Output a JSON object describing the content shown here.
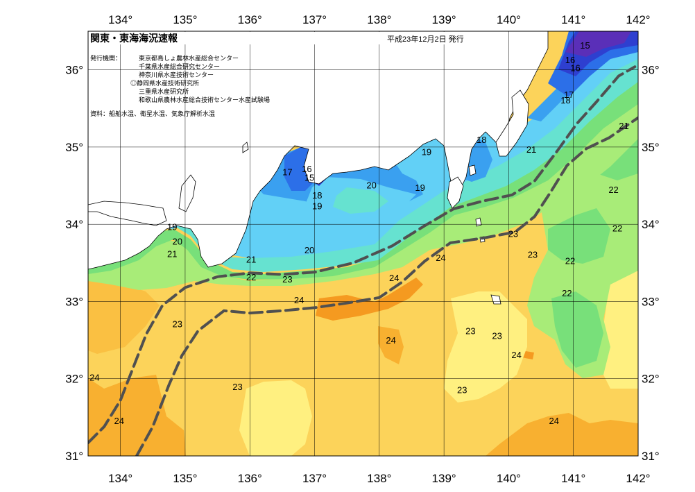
{
  "header": {
    "title": "関東・東海海況速報",
    "date": "平成23年12月2日 発行"
  },
  "issuers": {
    "label": "発行機関：",
    "lines": [
      "東京都島しょ農林水産総合センター",
      "千葉県水産総合研究センター",
      "神奈川県水産技術センター",
      "◎静岡県水産技術研究所",
      "三重県水産研究所",
      "和歌山県農林水産総合技術センター水産試験場"
    ]
  },
  "source": "資料：船舶水温、衛星水温、気象庁解析水温",
  "axes": {
    "lon_ticks": [
      "134°",
      "135°",
      "136°",
      "137°",
      "138°",
      "139°",
      "140°",
      "141°",
      "142°"
    ],
    "lat_ticks": [
      "36°",
      "35°",
      "34°",
      "33°",
      "32°",
      "31°"
    ],
    "lon_range": [
      133.5,
      142
    ],
    "lat_range": [
      31,
      36.5
    ]
  },
  "colors": {
    "t15": "#5a2fb8",
    "t16": "#2e3fd0",
    "t17": "#2c6fe8",
    "t18": "#3aa0f0",
    "t19": "#62d0f6",
    "t20": "#66e2d0",
    "t21": "#78e07a",
    "t22": "#a8ec78",
    "t23": "#fff080",
    "t23b": "#fcd35a",
    "t24": "#f8b030",
    "t24b": "#f59a20",
    "land": "#ffffff",
    "kuroshio": "#505050"
  },
  "isotherm_labels": [
    {
      "text": "15",
      "lon": 141.18,
      "lat": 36.32
    },
    {
      "text": "16",
      "lon": 140.95,
      "lat": 36.13
    },
    {
      "text": "16",
      "lon": 141.03,
      "lat": 36.03
    },
    {
      "text": "17",
      "lon": 140.93,
      "lat": 35.68
    },
    {
      "text": "18",
      "lon": 140.88,
      "lat": 35.61
    },
    {
      "text": "21",
      "lon": 141.78,
      "lat": 35.28
    },
    {
      "text": "18",
      "lon": 139.58,
      "lat": 35.1
    },
    {
      "text": "21",
      "lon": 140.35,
      "lat": 34.97
    },
    {
      "text": "19",
      "lon": 138.73,
      "lat": 34.94
    },
    {
      "text": "17",
      "lon": 136.58,
      "lat": 34.68
    },
    {
      "text": "16",
      "lon": 136.88,
      "lat": 34.72
    },
    {
      "text": "15",
      "lon": 136.92,
      "lat": 34.61
    },
    {
      "text": "18",
      "lon": 137.04,
      "lat": 34.38
    },
    {
      "text": "19",
      "lon": 137.04,
      "lat": 34.24
    },
    {
      "text": "20",
      "lon": 137.88,
      "lat": 34.51
    },
    {
      "text": "19",
      "lon": 138.63,
      "lat": 34.48
    },
    {
      "text": "22",
      "lon": 141.62,
      "lat": 34.45
    },
    {
      "text": "19",
      "lon": 134.8,
      "lat": 33.97
    },
    {
      "text": "22",
      "lon": 141.68,
      "lat": 33.95
    },
    {
      "text": "20",
      "lon": 134.88,
      "lat": 33.78
    },
    {
      "text": "21",
      "lon": 134.8,
      "lat": 33.62
    },
    {
      "text": "20",
      "lon": 136.92,
      "lat": 33.67
    },
    {
      "text": "23",
      "lon": 140.07,
      "lat": 33.88
    },
    {
      "text": "21",
      "lon": 136.02,
      "lat": 33.55
    },
    {
      "text": "24",
      "lon": 138.95,
      "lat": 33.57
    },
    {
      "text": "23",
      "lon": 140.37,
      "lat": 33.61
    },
    {
      "text": "22",
      "lon": 140.95,
      "lat": 33.53
    },
    {
      "text": "22",
      "lon": 136.02,
      "lat": 33.32
    },
    {
      "text": "23",
      "lon": 136.58,
      "lat": 33.29
    },
    {
      "text": "24",
      "lon": 138.23,
      "lat": 33.31
    },
    {
      "text": "22",
      "lon": 140.9,
      "lat": 33.11
    },
    {
      "text": "24",
      "lon": 136.76,
      "lat": 33.02
    },
    {
      "text": "23",
      "lon": 134.88,
      "lat": 32.71
    },
    {
      "text": "23",
      "lon": 139.41,
      "lat": 32.62
    },
    {
      "text": "23",
      "lon": 139.82,
      "lat": 32.56
    },
    {
      "text": "24",
      "lon": 138.18,
      "lat": 32.5
    },
    {
      "text": "24",
      "lon": 140.12,
      "lat": 32.31
    },
    {
      "text": "24",
      "lon": 133.6,
      "lat": 32.02
    },
    {
      "text": "23",
      "lon": 135.81,
      "lat": 31.9
    },
    {
      "text": "23",
      "lon": 139.28,
      "lat": 31.86
    },
    {
      "text": "24",
      "lon": 133.98,
      "lat": 31.46
    },
    {
      "text": "24",
      "lon": 140.7,
      "lat": 31.46
    }
  ],
  "kuroshio_paths": [
    [
      [
        133.5,
        31.17
      ],
      [
        133.75,
        31.38
      ],
      [
        134.0,
        31.72
      ],
      [
        134.2,
        32.15
      ],
      [
        134.4,
        32.58
      ],
      [
        134.65,
        32.95
      ],
      [
        135.0,
        33.18
      ],
      [
        135.5,
        33.32
      ],
      [
        136.0,
        33.37
      ],
      [
        136.5,
        33.35
      ],
      [
        137.0,
        33.38
      ],
      [
        137.6,
        33.5
      ],
      [
        138.2,
        33.72
      ],
      [
        138.7,
        33.98
      ],
      [
        139.15,
        34.2
      ],
      [
        139.6,
        34.3
      ],
      [
        140.05,
        34.38
      ],
      [
        140.4,
        34.56
      ],
      [
        140.75,
        34.95
      ],
      [
        141.05,
        35.3
      ],
      [
        141.35,
        35.58
      ],
      [
        141.7,
        35.92
      ],
      [
        141.95,
        36.04
      ]
    ],
    [
      [
        134.25,
        31.0
      ],
      [
        134.5,
        31.38
      ],
      [
        134.75,
        31.92
      ],
      [
        134.95,
        32.3
      ],
      [
        135.2,
        32.62
      ],
      [
        135.6,
        32.88
      ],
      [
        136.0,
        32.85
      ],
      [
        136.5,
        32.88
      ],
      [
        137.0,
        32.92
      ],
      [
        137.5,
        32.98
      ],
      [
        138.0,
        33.05
      ],
      [
        138.35,
        33.25
      ],
      [
        138.7,
        33.52
      ],
      [
        139.1,
        33.76
      ],
      [
        139.6,
        33.82
      ],
      [
        140.1,
        33.9
      ],
      [
        140.4,
        34.1
      ],
      [
        140.65,
        34.42
      ],
      [
        140.9,
        34.76
      ],
      [
        141.2,
        34.98
      ],
      [
        141.55,
        35.12
      ],
      [
        142.0,
        35.38
      ]
    ]
  ]
}
